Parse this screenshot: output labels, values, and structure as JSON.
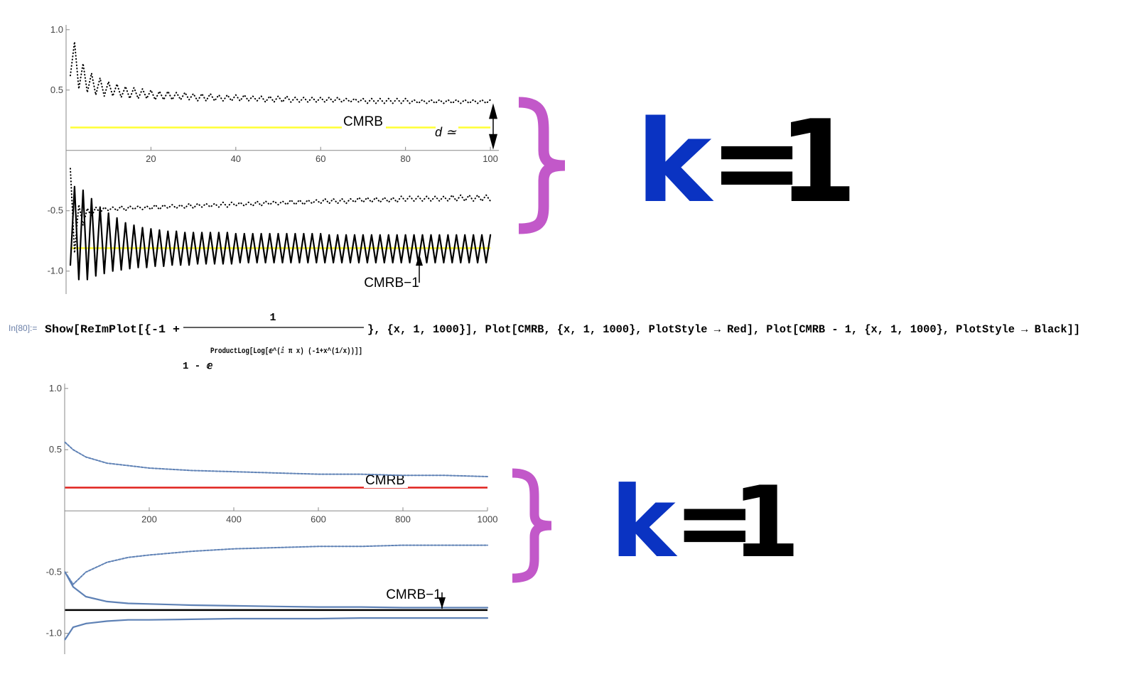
{
  "chart_data": [
    {
      "type": "line",
      "x": [
        1,
        2,
        3,
        4,
        5,
        6,
        7,
        8,
        9,
        10,
        11,
        12,
        13,
        14,
        15,
        16,
        17,
        18,
        19,
        20,
        21,
        22,
        23,
        24,
        25,
        26,
        27,
        28,
        29,
        30,
        31,
        32,
        33,
        34,
        35,
        36,
        37,
        38,
        39,
        40,
        41,
        42,
        43,
        44,
        45,
        46,
        47,
        48,
        49,
        50,
        51,
        52,
        53,
        54,
        55,
        56,
        57,
        58,
        59,
        60,
        61,
        62,
        63,
        64,
        65,
        66,
        67,
        68,
        69,
        70,
        71,
        72,
        73,
        74,
        75,
        76,
        77,
        78,
        79,
        80,
        81,
        82,
        83,
        84,
        85,
        86,
        87,
        88,
        89,
        90,
        91,
        92,
        93,
        94,
        95,
        96,
        97,
        98,
        99,
        100
      ],
      "xlim": [
        0,
        102
      ],
      "ylim": [
        -1.19,
        1.04
      ],
      "xticks": [
        20,
        40,
        60,
        80,
        100
      ],
      "yticks": [
        {
          "value": 1,
          "label": "1.0"
        },
        0.5,
        -0.5,
        {
          "value": -1,
          "label": "-1.0"
        }
      ],
      "series": [
        {
          "color": "#000000",
          "style": "dotted",
          "values": [
            0.62,
            0.9,
            0.51,
            0.72,
            0.48,
            0.64,
            0.46,
            0.6,
            0.45,
            0.57,
            0.45,
            0.55,
            0.44,
            0.53,
            0.43,
            0.52,
            0.43,
            0.51,
            0.43,
            0.5,
            0.42,
            0.49,
            0.42,
            0.49,
            0.42,
            0.48,
            0.42,
            0.48,
            0.42,
            0.47,
            0.41,
            0.47,
            0.41,
            0.47,
            0.41,
            0.46,
            0.41,
            0.46,
            0.41,
            0.46,
            0.41,
            0.46,
            0.41,
            0.45,
            0.41,
            0.45,
            0.4,
            0.45,
            0.4,
            0.45,
            0.4,
            0.45,
            0.4,
            0.44,
            0.4,
            0.44,
            0.4,
            0.44,
            0.4,
            0.44,
            0.4,
            0.44,
            0.4,
            0.44,
            0.4,
            0.43,
            0.4,
            0.43,
            0.4,
            0.43,
            0.39,
            0.43,
            0.39,
            0.43,
            0.39,
            0.43,
            0.39,
            0.43,
            0.39,
            0.43,
            0.39,
            0.42,
            0.39,
            0.42,
            0.39,
            0.42,
            0.39,
            0.42,
            0.39,
            0.42,
            0.39,
            0.42,
            0.39,
            0.42,
            0.39,
            0.42,
            0.39,
            0.42,
            0.39,
            0.42
          ]
        },
        {
          "color": "#000000",
          "style": "dotted",
          "values": [
            -0.15,
            -0.85,
            -0.45,
            -0.62,
            -0.48,
            -0.55,
            -0.47,
            -0.52,
            -0.47,
            -0.5,
            -0.47,
            -0.5,
            -0.46,
            -0.5,
            -0.46,
            -0.49,
            -0.46,
            -0.49,
            -0.46,
            -0.49,
            -0.45,
            -0.49,
            -0.45,
            -0.48,
            -0.45,
            -0.48,
            -0.45,
            -0.48,
            -0.44,
            -0.48,
            -0.44,
            -0.47,
            -0.44,
            -0.47,
            -0.44,
            -0.47,
            -0.43,
            -0.47,
            -0.43,
            -0.46,
            -0.43,
            -0.46,
            -0.43,
            -0.46,
            -0.42,
            -0.46,
            -0.42,
            -0.45,
            -0.42,
            -0.45,
            -0.42,
            -0.45,
            -0.41,
            -0.45,
            -0.41,
            -0.45,
            -0.41,
            -0.44,
            -0.41,
            -0.44,
            -0.4,
            -0.44,
            -0.4,
            -0.44,
            -0.4,
            -0.44,
            -0.4,
            -0.43,
            -0.39,
            -0.43,
            -0.39,
            -0.43,
            -0.39,
            -0.43,
            -0.39,
            -0.43,
            -0.39,
            -0.43,
            -0.38,
            -0.42,
            -0.38,
            -0.42,
            -0.38,
            -0.42,
            -0.38,
            -0.42,
            -0.38,
            -0.42,
            -0.38,
            -0.42,
            -0.37,
            -0.42,
            -0.37,
            -0.42,
            -0.37,
            -0.42,
            -0.37,
            -0.42,
            -0.37,
            -0.42
          ]
        },
        {
          "color": "#000000",
          "style": "solid",
          "values": [
            -0.95,
            -0.3,
            -1.07,
            -0.33,
            -1.07,
            -0.4,
            -1.04,
            -0.47,
            -1.02,
            -0.52,
            -1.0,
            -0.56,
            -0.99,
            -0.6,
            -0.98,
            -0.62,
            -0.97,
            -0.64,
            -0.97,
            -0.65,
            -0.96,
            -0.66,
            -0.96,
            -0.67,
            -0.95,
            -0.67,
            -0.95,
            -0.68,
            -0.95,
            -0.68,
            -0.94,
            -0.68,
            -0.94,
            -0.68,
            -0.94,
            -0.68,
            -0.94,
            -0.68,
            -0.94,
            -0.69,
            -0.93,
            -0.69,
            -0.93,
            -0.69,
            -0.93,
            -0.69,
            -0.93,
            -0.69,
            -0.93,
            -0.69,
            -0.93,
            -0.69,
            -0.93,
            -0.69,
            -0.93,
            -0.69,
            -0.93,
            -0.69,
            -0.93,
            -0.69,
            -0.93,
            -0.7,
            -0.93,
            -0.7,
            -0.93,
            -0.7,
            -0.93,
            -0.7,
            -0.93,
            -0.7,
            -0.93,
            -0.7,
            -0.93,
            -0.7,
            -0.93,
            -0.7,
            -0.93,
            -0.7,
            -0.93,
            -0.7,
            -0.93,
            -0.7,
            -0.93,
            -0.7,
            -0.93,
            -0.7,
            -0.93,
            -0.7,
            -0.93,
            -0.7,
            -0.93,
            -0.7,
            -0.93,
            -0.7,
            -0.93,
            -0.7,
            -0.93,
            -0.7,
            -0.93,
            -0.7
          ]
        }
      ],
      "hlines": [
        {
          "name": "CMRB",
          "value": 0.19,
          "color": "#ffff33"
        },
        {
          "name": "CMRB−1",
          "value": -0.81,
          "color": "#ffff33"
        }
      ],
      "annotation": "d ≃"
    },
    {
      "type": "line",
      "x": [
        1,
        20,
        50,
        100,
        150,
        200,
        300,
        400,
        500,
        600,
        700,
        800,
        900,
        1000
      ],
      "xlim": [
        0,
        1000
      ],
      "ylim": [
        -1.17,
        1.04
      ],
      "xticks": [
        200,
        400,
        600,
        800,
        1000
      ],
      "yticks": [
        {
          "value": 1,
          "label": "1.0"
        },
        0.5,
        -0.5,
        {
          "value": -1,
          "label": "-1.0"
        }
      ],
      "series": [
        {
          "color": "#5e81b5",
          "style": "dashed",
          "values": [
            0.56,
            0.5,
            0.44,
            0.39,
            0.37,
            0.35,
            0.33,
            0.32,
            0.31,
            0.3,
            0.3,
            0.29,
            0.29,
            0.28
          ]
        },
        {
          "color": "#5e81b5",
          "style": "dashed",
          "values": [
            -0.5,
            -0.6,
            -0.5,
            -0.42,
            -0.38,
            -0.36,
            -0.33,
            -0.31,
            -0.3,
            -0.29,
            -0.29,
            -0.28,
            -0.28,
            -0.28
          ]
        },
        {
          "color": "#5e81b5",
          "style": "solid",
          "values": [
            -0.5,
            -0.62,
            -0.7,
            -0.74,
            -0.755,
            -0.76,
            -0.77,
            -0.775,
            -0.78,
            -0.785,
            -0.785,
            -0.79,
            -0.79,
            -0.79
          ]
        },
        {
          "color": "#5e81b5",
          "style": "solid",
          "values": [
            -1.05,
            -0.95,
            -0.92,
            -0.9,
            -0.89,
            -0.89,
            -0.885,
            -0.88,
            -0.88,
            -0.88,
            -0.875,
            -0.875,
            -0.875,
            -0.875
          ]
        }
      ],
      "hlines": [
        {
          "name": "CMRB",
          "value": 0.19,
          "color": "#e0201b"
        },
        {
          "name": "CMRB−1",
          "value": -0.81,
          "color": "#000000"
        }
      ]
    }
  ],
  "input": {
    "label": "In[80]:=",
    "head": "Show[ReImPlot[{-1 +",
    "numerator": "1",
    "denominator": "1 - ⅇ",
    "exponent": "ProductLog[Log[ⅇ^(ⅈ π x) (-1+x^(1/x))]]",
    "tail": "}, {x, 1, 1000}], Plot[CMRB, {x, 1, 1000}, PlotStyle → Red], Plot[CMRB - 1, {x, 1, 1000}, PlotStyle → Black]]"
  },
  "side_notes": [
    [
      "k",
      "=",
      "1"
    ],
    [
      "k",
      "=",
      "1"
    ]
  ]
}
